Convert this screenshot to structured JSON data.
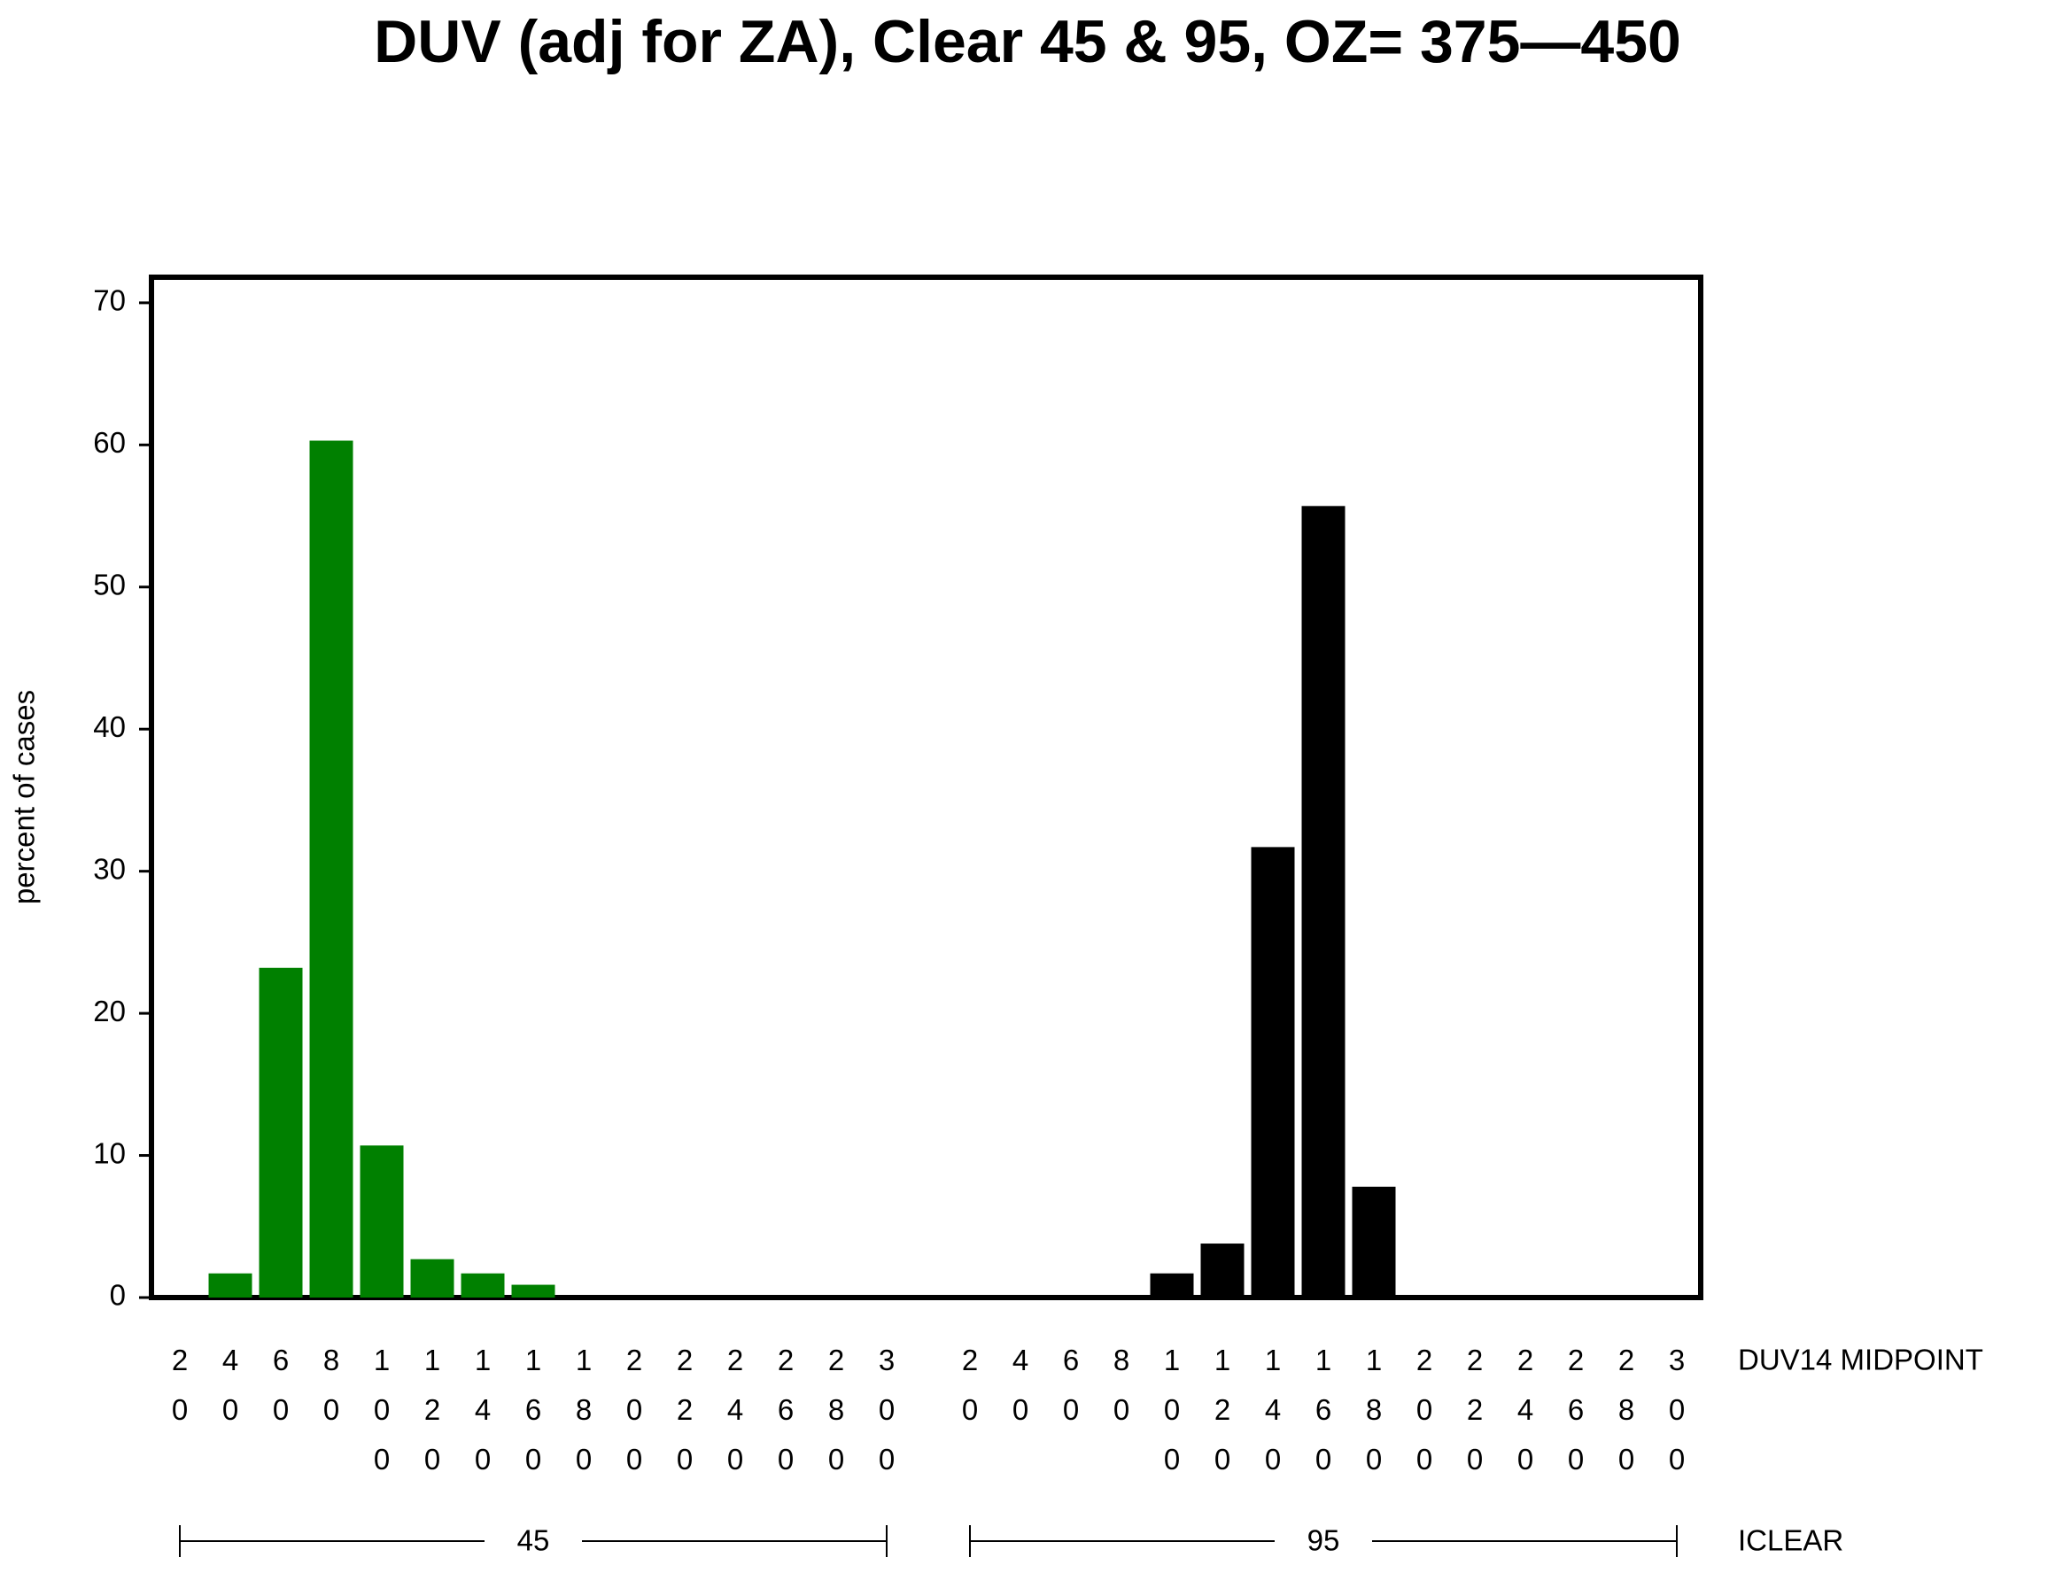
{
  "chart_data": {
    "type": "grouped_bar",
    "title": "DUV (adj for ZA), Clear 45 & 95, OZ= 375—450",
    "y_label": "percent of cases",
    "x_label": "DUV14 MIDPOINT",
    "group_label": "ICLEAR",
    "categories": [
      "20",
      "40",
      "60",
      "80",
      "100",
      "120",
      "140",
      "160",
      "180",
      "200",
      "220",
      "240",
      "260",
      "280",
      "300"
    ],
    "series": [
      {
        "name": "45",
        "color": "#008000",
        "values": [
          0,
          1.7,
          23.2,
          60.3,
          10.7,
          2.7,
          1.7,
          0.9,
          0,
          0,
          0,
          0,
          0,
          0,
          0
        ]
      },
      {
        "name": "95",
        "color": "#000000",
        "values": [
          0,
          0,
          0,
          0,
          1.7,
          3.8,
          31.7,
          55.7,
          7.8,
          0,
          0,
          0,
          0,
          0,
          0
        ]
      }
    ],
    "ylim": [
      0,
      71.8
    ],
    "yticks": [
      0,
      10,
      20,
      30,
      40,
      50,
      60,
      70
    ]
  }
}
